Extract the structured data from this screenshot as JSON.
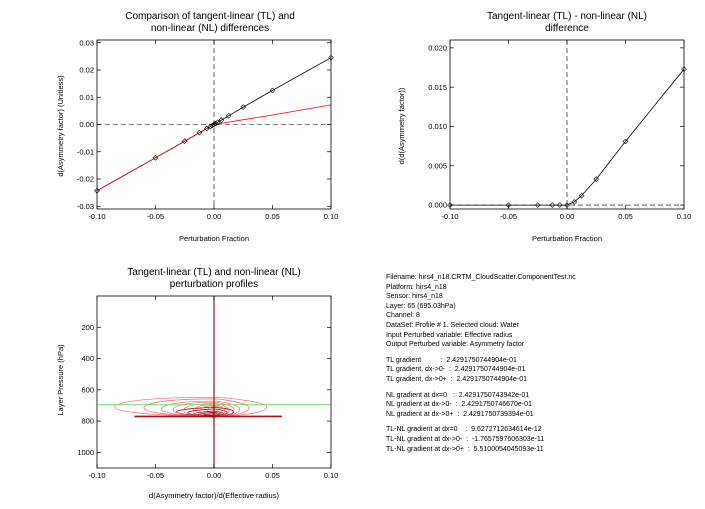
{
  "panels": {
    "tl": {
      "title": [
        "Comparison of tangent-linear (TL) and",
        "non-linear (NL) differences"
      ],
      "xlabel": "Perturbation Fraction",
      "ylabel": "d(Asymmetry factor) (Unitless)"
    },
    "tr": {
      "title": [
        "Tangent-linear (TL) - non-linear (NL)",
        "difference"
      ],
      "xlabel": "Perturbation Fraction",
      "ylabel": "d(d(Asymmetry factor))"
    },
    "bl": {
      "title": [
        "Tangent-linear (TL) and non-linear (NL)",
        "perturbation profiles"
      ],
      "xlabel": "d(Asymmetry factor)/d(Effective radius)",
      "ylabel": "Layer Pressure (hPa)"
    }
  },
  "info": {
    "header": [
      "Filename: hirs4_n18.CRTM_CloudScatter.ComponentTest.nc",
      "Platform: hirs4_n18",
      "Sensor: hirs4_n18",
      "Layer: 65 (695.03hPa)",
      "Channel: 8",
      "DataSet: Profile # 1. Selected cloud: Water",
      "Input Perturbed variable: Effective radius",
      "Output Perturbed variable: Asymmetry factor"
    ],
    "tl": [
      "TL gradient          :  2.4291750744904e-01",
      "TL gradient, dx->0-  :  2.4291750744904e-01",
      "TL gradient, dx->0+  :  2.4291750744904e-01"
    ],
    "nl": [
      "NL gradient at dx=0   :  2.4291750743942e-01",
      "NL gradient at dx->0-  :  2.4291750746670e-01",
      "NL gradient at dx->0+  :  2.4291750739394e-01"
    ],
    "diff": [
      "TL-NL gradient at dx=0    :  9.6272712634614e-12",
      "TL-NL gradient at dx->0-  :  -1.7657597606303e-11",
      "TL-NL gradient at dx->0+  :  5.5100054045093e-11"
    ]
  },
  "chart_data": [
    {
      "type": "line",
      "title": "Comparison of tangent-linear (TL) and non-linear (NL) differences",
      "xlabel": "Perturbation Fraction",
      "ylabel": "d(Asymmetry factor) (Unitless)",
      "xlim": [
        -0.1,
        0.1
      ],
      "ylim": [
        -0.031,
        0.031
      ],
      "xticks": [
        -0.1,
        -0.05,
        0.0,
        0.05,
        0.1
      ],
      "xtick_labels": [
        "-0.10",
        "-0.05",
        "0.00",
        "0.05",
        "0.10"
      ],
      "yticks": [
        -0.03,
        -0.02,
        -0.01,
        0.0,
        0.01,
        0.02,
        0.03
      ],
      "ytick_labels": [
        "-0.03",
        "-0.02",
        "-0.01",
        "0.00",
        "0.01",
        "0.02",
        "0.03"
      ],
      "grid": false,
      "series": [
        {
          "color": "#000000",
          "marker": "diamond",
          "x": [
            -0.1,
            -0.05,
            -0.025,
            -0.0125,
            -0.00625,
            -0.003125,
            -0.0015625,
            0.0,
            0.0015625,
            0.003125,
            0.00625,
            0.0125,
            0.025,
            0.05,
            0.1
          ],
          "y": [
            -0.0243,
            -0.0122,
            -0.0061,
            -0.003,
            -0.0015,
            -0.00076,
            -0.00038,
            0.0,
            0.00039,
            0.00079,
            0.0016,
            0.0032,
            0.0064,
            0.0125,
            0.0245
          ]
        },
        {
          "color": "#ff0000",
          "marker": "none",
          "x": [
            -0.1,
            -0.05,
            0.0,
            0.05,
            0.1
          ],
          "y": [
            -0.0243,
            -0.0122,
            0.0,
            0.0035,
            0.0072
          ]
        }
      ]
    },
    {
      "type": "line",
      "title": "Tangent-linear (TL) - non-linear (NL) difference",
      "xlabel": "Perturbation Fraction",
      "ylabel": "d(d(Asymmetry factor))",
      "xlim": [
        -0.1,
        0.1
      ],
      "ylim": [
        -0.0005,
        0.021
      ],
      "xticks": [
        -0.1,
        -0.05,
        0.0,
        0.05,
        0.1
      ],
      "xtick_labels": [
        "-0.10",
        "-0.05",
        "0.00",
        "0.05",
        "0.10"
      ],
      "yticks": [
        0.0,
        0.005,
        0.01,
        0.015,
        0.02
      ],
      "ytick_labels": [
        "0.000",
        "0.005",
        "0.010",
        "0.015",
        "0.020"
      ],
      "grid": false,
      "series": [
        {
          "color": "#000000",
          "marker": "diamond",
          "x": [
            -0.1,
            -0.05,
            -0.025,
            -0.0125,
            -0.00625,
            0.0,
            0.00625,
            0.0125,
            0.025,
            0.05,
            0.1
          ],
          "y": [
            0.0,
            0.0,
            0.0,
            0.0,
            0.0,
            0.0,
            0.0004,
            0.0012,
            0.0033,
            0.0081,
            0.0173
          ]
        }
      ]
    },
    {
      "type": "line",
      "title": "Tangent-linear (TL) and non-linear (NL) perturbation profiles",
      "xlabel": "d(Asymmetry factor)/d(Effective radius)",
      "ylabel": "Layer Pressure (hPa)",
      "xlim": [
        -0.1,
        0.1
      ],
      "ylim": [
        1100,
        0
      ],
      "xticks": [
        -0.1,
        -0.05,
        0.0,
        0.05,
        0.1
      ],
      "xtick_labels": [
        "-0.10",
        "-0.05",
        "0.00",
        "0.05",
        "0.10"
      ],
      "yticks": [
        200,
        400,
        600,
        800,
        1000
      ],
      "ytick_labels": [
        "200",
        "400",
        "600",
        "800",
        "1000"
      ],
      "reference_pressure": 695.03,
      "profiles": {
        "nl_color": "#ff6060",
        "tl_color": "#a01010",
        "base_level": 770,
        "loops": [
          {
            "top": 648,
            "xl": -0.085,
            "xr": 0.045
          },
          {
            "top": 658,
            "xl": -0.06,
            "xr": 0.03
          },
          {
            "top": 672,
            "xl": -0.045,
            "xr": 0.022
          },
          {
            "top": 680,
            "xl": -0.035,
            "xr": 0.017
          },
          {
            "top": 688,
            "xl": -0.026,
            "xr": 0.013
          },
          {
            "top": 696,
            "xl": -0.018,
            "xr": 0.009
          },
          {
            "top": 702,
            "xl": -0.012,
            "xr": 0.006
          },
          {
            "top": 708,
            "xl": -0.006,
            "xr": 0.003
          }
        ]
      }
    }
  ]
}
